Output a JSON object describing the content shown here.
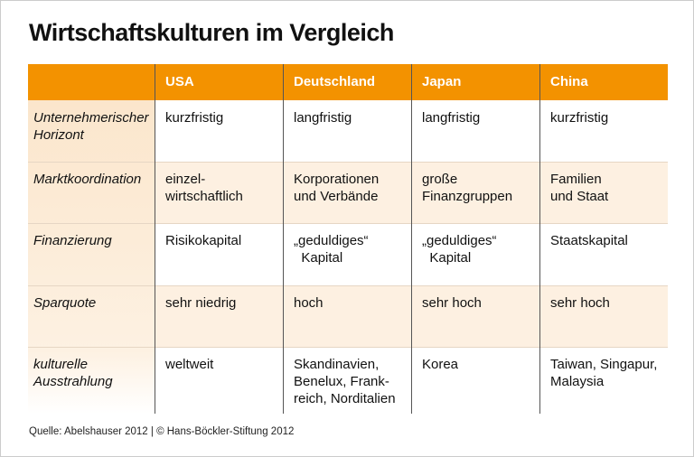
{
  "header": {
    "title": "Wirtschaftskulturen im Vergleich"
  },
  "table": {
    "columns": [
      "USA",
      "Deutschland",
      "Japan",
      "China"
    ],
    "rows": [
      {
        "label": "Unternehmerischer\nHorizont",
        "cells": [
          "kurzfristig",
          "langfristig",
          "langfristig",
          "kurzfristig"
        ]
      },
      {
        "label": "Marktkoordination",
        "cells": [
          "einzel-\nwirtschaftlich",
          "Korporationen\nund Verbände",
          "große\nFinanzgruppen",
          "Familien\nund Staat"
        ]
      },
      {
        "label": "Finanzierung",
        "cells": [
          "Risikokapital",
          "„geduldiges“\n  Kapital",
          "„geduldiges“\n  Kapital",
          "Staatskapital"
        ]
      },
      {
        "label": "Sparquote",
        "cells": [
          "sehr niedrig",
          "hoch",
          "sehr hoch",
          "sehr hoch"
        ]
      },
      {
        "label": "kulturelle\nAusstrahlung",
        "cells": [
          "weltweit",
          "Skandinavien,\nBenelux, Frank-\nreich, Norditalien",
          "Korea",
          "Taiwan, Singapur,\nMalaysia"
        ]
      }
    ]
  },
  "footer": {
    "source": "Quelle: Abelshauser 2012 | © Hans-Böckler-Stiftung 2012"
  }
}
